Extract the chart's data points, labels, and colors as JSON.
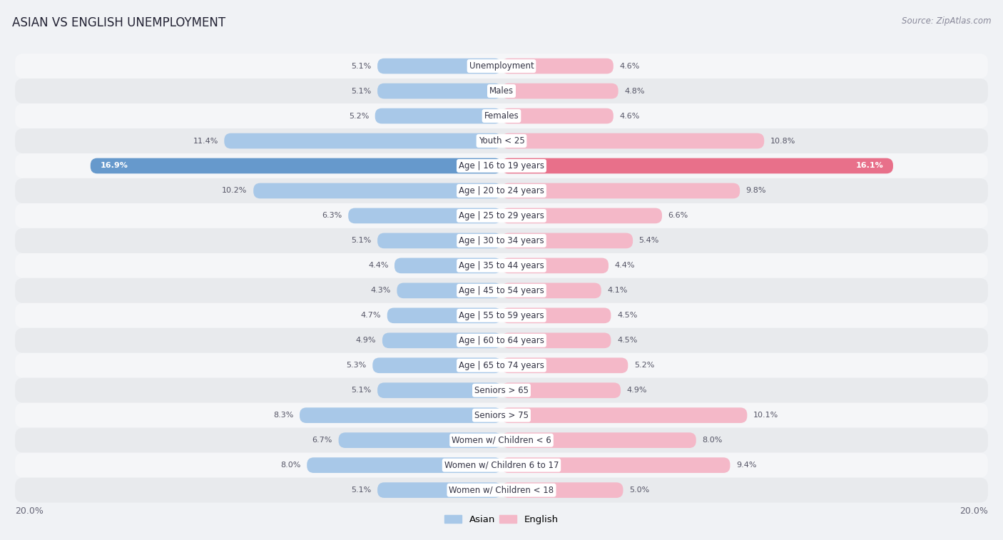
{
  "title": "ASIAN VS ENGLISH UNEMPLOYMENT",
  "source": "Source: ZipAtlas.com",
  "categories": [
    "Unemployment",
    "Males",
    "Females",
    "Youth < 25",
    "Age | 16 to 19 years",
    "Age | 20 to 24 years",
    "Age | 25 to 29 years",
    "Age | 30 to 34 years",
    "Age | 35 to 44 years",
    "Age | 45 to 54 years",
    "Age | 55 to 59 years",
    "Age | 60 to 64 years",
    "Age | 65 to 74 years",
    "Seniors > 65",
    "Seniors > 75",
    "Women w/ Children < 6",
    "Women w/ Children 6 to 17",
    "Women w/ Children < 18"
  ],
  "asian_values": [
    5.1,
    5.1,
    5.2,
    11.4,
    16.9,
    10.2,
    6.3,
    5.1,
    4.4,
    4.3,
    4.7,
    4.9,
    5.3,
    5.1,
    8.3,
    6.7,
    8.0,
    5.1
  ],
  "english_values": [
    4.6,
    4.8,
    4.6,
    10.8,
    16.1,
    9.8,
    6.6,
    5.4,
    4.4,
    4.1,
    4.5,
    4.5,
    5.2,
    4.9,
    10.1,
    8.0,
    9.4,
    5.0
  ],
  "asian_color_normal": "#a8c8e8",
  "asian_color_highlight": "#6699cc",
  "english_color_normal": "#f4b8c8",
  "english_color_highlight": "#e8708a",
  "highlight_rows": [
    4
  ],
  "bar_height": 0.62,
  "xlim": 20.0,
  "bg_color": "#f0f2f5",
  "row_bg_odd": "#e8eaed",
  "row_bg_even": "#f5f6f8",
  "label_fontsize": 8.5,
  "value_fontsize": 8.0,
  "title_fontsize": 12,
  "source_fontsize": 8.5
}
